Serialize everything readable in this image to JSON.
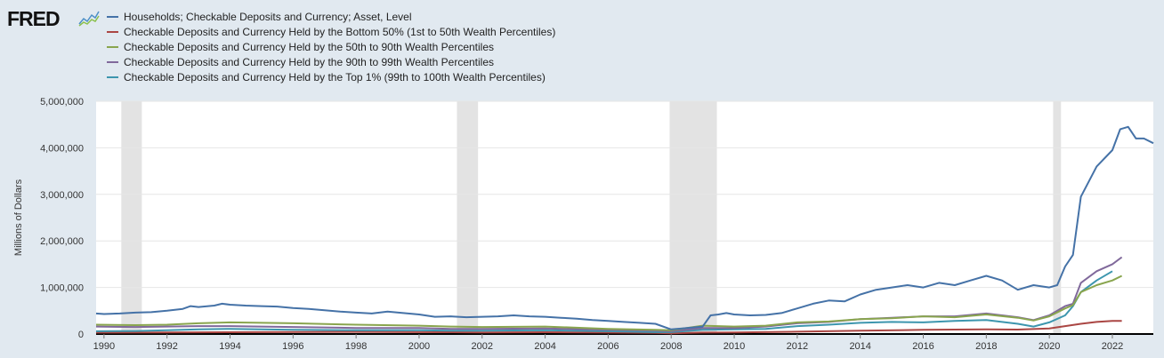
{
  "logo": {
    "text": "FRED"
  },
  "chart_data": {
    "type": "line",
    "title": "",
    "xlabel": "",
    "ylabel": "Millions of Dollars",
    "xlim": [
      1989.75,
      2023.3
    ],
    "ylim": [
      0,
      5000000
    ],
    "yticks": [
      {
        "value": 0,
        "label": "0"
      },
      {
        "value": 1000000,
        "label": "1,000,000"
      },
      {
        "value": 2000000,
        "label": "2,000,000"
      },
      {
        "value": 3000000,
        "label": "3,000,000"
      },
      {
        "value": 4000000,
        "label": "4,000,000"
      },
      {
        "value": 5000000,
        "label": "5,000,000"
      }
    ],
    "xticks": [
      {
        "value": 1990,
        "label": "1990"
      },
      {
        "value": 1992,
        "label": "1992"
      },
      {
        "value": 1994,
        "label": "1994"
      },
      {
        "value": 1996,
        "label": "1996"
      },
      {
        "value": 1998,
        "label": "1998"
      },
      {
        "value": 2000,
        "label": "2000"
      },
      {
        "value": 2002,
        "label": "2002"
      },
      {
        "value": 2004,
        "label": "2004"
      },
      {
        "value": 2006,
        "label": "2006"
      },
      {
        "value": 2008,
        "label": "2008"
      },
      {
        "value": 2010,
        "label": "2010"
      },
      {
        "value": 2012,
        "label": "2012"
      },
      {
        "value": 2014,
        "label": "2014"
      },
      {
        "value": 2016,
        "label": "2016"
      },
      {
        "value": 2018,
        "label": "2018"
      },
      {
        "value": 2020,
        "label": "2020"
      },
      {
        "value": 2022,
        "label": "2022"
      }
    ],
    "grid": "horizontal",
    "legend": "top",
    "recessions": [
      [
        1990.55,
        1991.2
      ],
      [
        2001.2,
        2001.87
      ],
      [
        2007.95,
        2009.45
      ],
      [
        2020.12,
        2020.37
      ]
    ],
    "series": [
      {
        "name": "Households; Checkable Deposits and Currency; Asset, Level",
        "color": "#4572a7",
        "x": [
          1989.75,
          1990,
          1990.5,
          1991,
          1991.5,
          1992,
          1992.5,
          1992.75,
          1993,
          1993.5,
          1993.75,
          1994,
          1994.5,
          1995,
          1995.5,
          1996,
          1996.5,
          1997,
          1997.5,
          1998,
          1998.5,
          1999,
          1999.5,
          2000,
          2000.5,
          2001,
          2001.5,
          2002,
          2002.5,
          2003,
          2003.5,
          2004,
          2004.5,
          2005,
          2005.5,
          2006,
          2006.5,
          2007,
          2007.5,
          2008,
          2008.5,
          2009,
          2009.25,
          2009.5,
          2009.75,
          2010,
          2010.5,
          2011,
          2011.5,
          2012,
          2012.5,
          2013,
          2013.5,
          2014,
          2014.5,
          2015,
          2015.5,
          2016,
          2016.5,
          2017,
          2017.5,
          2018,
          2018.5,
          2019,
          2019.5,
          2020,
          2020.25,
          2020.5,
          2020.75,
          2021,
          2021.5,
          2022,
          2022.25,
          2022.5,
          2022.75,
          2023,
          2023.3
        ],
        "values": [
          440000,
          430000,
          440000,
          460000,
          470000,
          500000,
          540000,
          600000,
          580000,
          610000,
          650000,
          630000,
          610000,
          600000,
          590000,
          560000,
          540000,
          510000,
          480000,
          460000,
          440000,
          480000,
          450000,
          420000,
          370000,
          380000,
          360000,
          370000,
          380000,
          400000,
          380000,
          370000,
          350000,
          330000,
          300000,
          280000,
          260000,
          240000,
          220000,
          100000,
          130000,
          160000,
          400000,
          420000,
          450000,
          420000,
          400000,
          410000,
          450000,
          550000,
          650000,
          720000,
          700000,
          850000,
          950000,
          1000000,
          1050000,
          1000000,
          1100000,
          1050000,
          1150000,
          1250000,
          1150000,
          950000,
          1050000,
          1000000,
          1050000,
          1450000,
          1700000,
          2950000,
          3600000,
          3950000,
          4400000,
          4450000,
          4200000,
          4200000,
          4100000
        ]
      },
      {
        "name": "Checkable Deposits and Currency Held by the Bottom 50% (1st to 50th Wealth Percentiles)",
        "color": "#aa4643",
        "x": [
          1989.75,
          1992,
          1995,
          1998,
          2000,
          2002,
          2004,
          2006,
          2007.5,
          2008,
          2009,
          2010,
          2012,
          2014,
          2016,
          2018,
          2019,
          2020,
          2020.5,
          2021,
          2021.5,
          2022,
          2022.3
        ],
        "values": [
          30000,
          35000,
          40000,
          45000,
          40000,
          35000,
          38000,
          30000,
          25000,
          15000,
          30000,
          35000,
          50000,
          70000,
          90000,
          100000,
          95000,
          120000,
          170000,
          220000,
          260000,
          280000,
          280000
        ]
      },
      {
        "name": "Checkable Deposits and Currency Held by the 50th to 90th Wealth Percentiles",
        "color": "#89a54e",
        "x": [
          1989.75,
          1991,
          1992,
          1993,
          1994,
          1995,
          1996,
          1998,
          2000,
          2001,
          2002,
          2004,
          2006,
          2007.5,
          2008,
          2009,
          2010,
          2011,
          2012,
          2013,
          2014,
          2015,
          2016,
          2017,
          2018,
          2019,
          2019.5,
          2020,
          2020.5,
          2020.75,
          2021,
          2021.5,
          2022,
          2022.3
        ],
        "values": [
          200000,
          190000,
          200000,
          230000,
          250000,
          240000,
          230000,
          200000,
          180000,
          160000,
          150000,
          160000,
          110000,
          90000,
          80000,
          180000,
          160000,
          180000,
          250000,
          270000,
          320000,
          340000,
          380000,
          360000,
          420000,
          350000,
          290000,
          380000,
          550000,
          620000,
          900000,
          1050000,
          1150000,
          1250000
        ]
      },
      {
        "name": "Checkable Deposits and Currency Held by the 90th to 99th Wealth Percentiles",
        "color": "#80699b",
        "x": [
          1989.75,
          1991,
          1992,
          1993,
          1994,
          1995,
          1996,
          1998,
          2000,
          2001,
          2002,
          2004,
          2006,
          2007.5,
          2008,
          2009,
          2010,
          2011,
          2012,
          2013,
          2014,
          2015,
          2016,
          2017,
          2018,
          2019,
          2019.5,
          2020,
          2020.5,
          2020.75,
          2021,
          2021.5,
          2022,
          2022.3
        ],
        "values": [
          160000,
          150000,
          160000,
          170000,
          170000,
          160000,
          150000,
          130000,
          130000,
          110000,
          110000,
          120000,
          90000,
          70000,
          60000,
          130000,
          130000,
          160000,
          230000,
          260000,
          320000,
          350000,
          380000,
          380000,
          440000,
          360000,
          300000,
          400000,
          600000,
          650000,
          1100000,
          1350000,
          1500000,
          1650000
        ]
      },
      {
        "name": "Checkable Deposits and Currency Held by the Top 1% (99th to 100th Wealth Percentiles)",
        "color": "#3d96ae",
        "x": [
          1989.75,
          1991,
          1992,
          1993,
          1994,
          1995,
          1996,
          1998,
          2000,
          2001,
          2002,
          2004,
          2006,
          2007.5,
          2008,
          2009,
          2010,
          2011,
          2012,
          2013,
          2014,
          2015,
          2016,
          2017,
          2018,
          2019,
          2019.5,
          2020,
          2020.5,
          2020.75,
          2021,
          2021.5,
          2022
        ],
        "values": [
          60000,
          65000,
          80000,
          100000,
          110000,
          100000,
          90000,
          80000,
          80000,
          70000,
          70000,
          80000,
          60000,
          40000,
          40000,
          90000,
          100000,
          110000,
          170000,
          200000,
          240000,
          260000,
          250000,
          280000,
          300000,
          220000,
          160000,
          250000,
          400000,
          600000,
          900000,
          1150000,
          1350000
        ]
      }
    ]
  }
}
